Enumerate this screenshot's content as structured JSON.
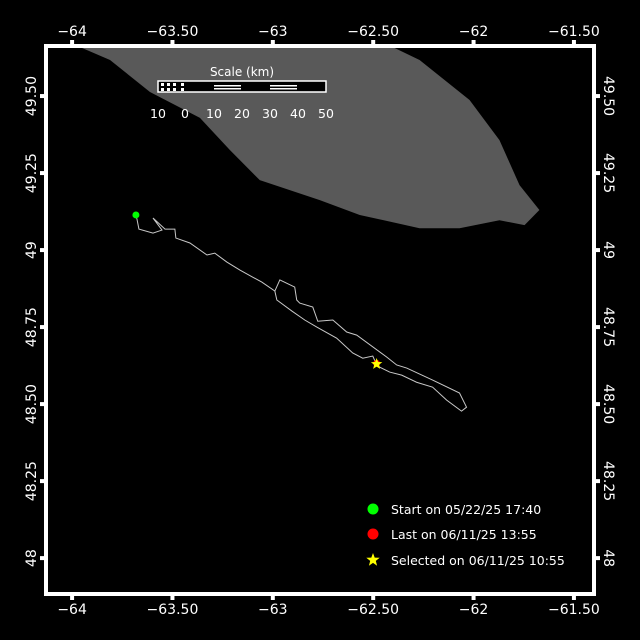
{
  "map": {
    "lon_range": [
      -64.12,
      -61.41
    ],
    "lat_range": [
      47.89,
      49.656
    ],
    "lon_ticks": [
      -64,
      -63.5,
      -63,
      -62.5,
      -62,
      -61.5
    ],
    "lon_tick_labels": [
      "−64",
      "−63.50",
      "−63",
      "−62.50",
      "−62",
      "−61.50"
    ],
    "lat_ticks": [
      49.5,
      49.25,
      49,
      48.75,
      48.5,
      48.25,
      48
    ],
    "lat_tick_labels": [
      "49.50",
      "49.25",
      "49",
      "48.75",
      "48.50",
      "48.25",
      "48"
    ],
    "colors": {
      "water": "#000000",
      "land": "#595959",
      "track": "#c8c8c8",
      "start": "#00ff00",
      "last": "#ff0000",
      "selected": "#ffff00",
      "frame": "#ffffff"
    },
    "land": [
      [
        -63.886,
        49.656
      ],
      [
        -62.393,
        49.656
      ],
      [
        -62.269,
        49.617
      ],
      [
        -62.02,
        49.487
      ],
      [
        -61.871,
        49.357
      ],
      [
        -61.771,
        49.211
      ],
      [
        -61.672,
        49.13
      ],
      [
        -61.746,
        49.081
      ],
      [
        -61.871,
        49.097
      ],
      [
        -62.07,
        49.071
      ],
      [
        -62.269,
        49.071
      ],
      [
        -62.567,
        49.114
      ],
      [
        -62.766,
        49.162
      ],
      [
        -63.065,
        49.227
      ],
      [
        -63.214,
        49.325
      ],
      [
        -63.363,
        49.429
      ],
      [
        -63.612,
        49.513
      ],
      [
        -63.811,
        49.617
      ],
      [
        -63.95,
        49.656
      ]
    ],
    "track": [
      [
        [
          -63.682,
          49.114
        ],
        [
          -63.677,
          49.101
        ],
        [
          -63.667,
          49.068
        ],
        [
          -63.597,
          49.055
        ],
        [
          -63.552,
          49.065
        ],
        [
          -63.597,
          49.104
        ],
        [
          -63.537,
          49.068
        ],
        [
          -63.488,
          49.068
        ],
        [
          -63.483,
          49.039
        ],
        [
          -63.413,
          49.023
        ],
        [
          -63.328,
          48.984
        ],
        [
          -63.289,
          48.99
        ],
        [
          -63.229,
          48.961
        ],
        [
          -63.164,
          48.935
        ],
        [
          -63.055,
          48.896
        ],
        [
          -62.99,
          48.867
        ],
        [
          -62.965,
          48.903
        ],
        [
          -62.891,
          48.88
        ],
        [
          -62.881,
          48.838
        ],
        [
          -62.866,
          48.828
        ],
        [
          -62.801,
          48.815
        ],
        [
          -62.776,
          48.769
        ],
        [
          -62.701,
          48.773
        ],
        [
          -62.632,
          48.734
        ],
        [
          -62.582,
          48.724
        ],
        [
          -62.433,
          48.653
        ],
        [
          -62.383,
          48.627
        ],
        [
          -62.333,
          48.617
        ],
        [
          -62.204,
          48.578
        ],
        [
          -62.07,
          48.536
        ],
        [
          -62.035,
          48.49
        ],
        [
          -62.06,
          48.477
        ],
        [
          -62.134,
          48.513
        ],
        [
          -62.204,
          48.555
        ],
        [
          -62.284,
          48.571
        ],
        [
          -62.358,
          48.594
        ],
        [
          -62.418,
          48.604
        ],
        [
          -62.468,
          48.62
        ],
        [
          -62.483,
          48.63
        ]
      ],
      [
        [
          -62.99,
          48.867
        ],
        [
          -62.98,
          48.838
        ],
        [
          -62.905,
          48.802
        ],
        [
          -62.841,
          48.773
        ],
        [
          -62.781,
          48.75
        ],
        [
          -62.682,
          48.714
        ],
        [
          -62.602,
          48.666
        ],
        [
          -62.552,
          48.649
        ],
        [
          -62.502,
          48.656
        ],
        [
          -62.483,
          48.627
        ]
      ]
    ],
    "start_point": [
      -63.682,
      49.114
    ],
    "last_point": [
      -62.483,
      48.632
    ],
    "selected_point": [
      -62.483,
      48.63
    ]
  },
  "scale": {
    "title": "Scale (km)",
    "labels": [
      "10",
      "0",
      "10",
      "20",
      "30",
      "40",
      "50"
    ]
  },
  "legend": {
    "start": "Start on 05/22/25 17:40",
    "last": "Last on 06/11/25 13:55",
    "selected": "Selected on 06/11/25 10:55"
  }
}
